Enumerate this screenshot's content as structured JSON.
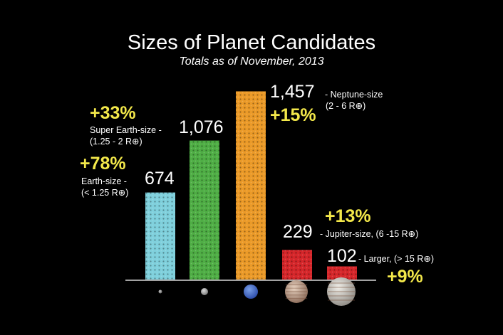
{
  "chart_data": {
    "type": "bar",
    "title": "Sizes of Planet Candidates",
    "subtitle": "Totals as of November, 2013",
    "categories": [
      "Earth-size",
      "Super Earth-size",
      "Neptune-size",
      "Jupiter-size",
      "Larger"
    ],
    "values": [
      674,
      1076,
      1457,
      229,
      102
    ],
    "value_labels": [
      "674",
      "1,076",
      "1,457",
      "229",
      "102"
    ],
    "range_labels": [
      "(< 1.25 R⊕)",
      "(1.25 - 2 R⊕)",
      "(2 - 6 R⊕)",
      "(6 -15 R⊕)",
      "(> 15 R⊕)"
    ],
    "description_labels": [
      "Earth-size -",
      "Super Earth-size -",
      "- Neptune-size",
      "- Jupiter-size, (6 -15 R⊕)",
      "- Larger, (> 15 R⊕)"
    ],
    "increase_labels": [
      "+78%",
      "+33%",
      "+15%",
      "+13%",
      "+9%"
    ],
    "colors": [
      "#7fd0dc",
      "#4fae45",
      "#eb9a28",
      "#d5262a",
      "#d5262a"
    ],
    "ylim": [
      0,
      1520
    ],
    "grid": false,
    "legend": "none",
    "xlabel": "",
    "ylabel": ""
  },
  "planet_icons": [
    "earth-icon",
    "super-earth-icon",
    "neptune-icon",
    "jupiter-icon",
    "larger-planet-icon"
  ]
}
